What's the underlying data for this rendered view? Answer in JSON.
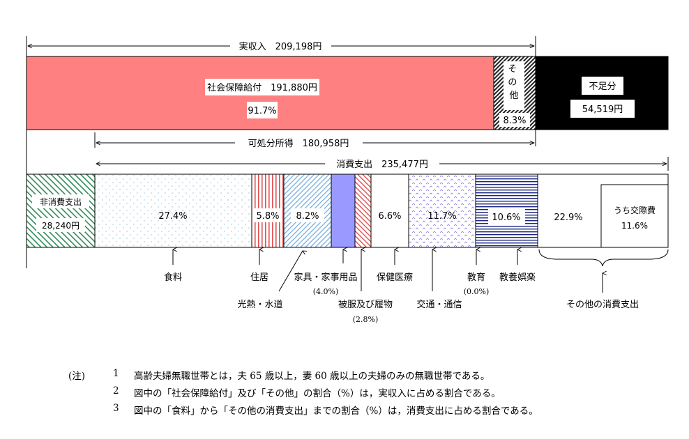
{
  "chart_data": {
    "type": "bar",
    "top_bar": {
      "header": "実収入　209,198円",
      "segments": [
        {
          "name": "社会保障給付　191,880円",
          "value": 191880,
          "pct": "91.7%",
          "color": "#ff8080"
        },
        {
          "name": "その他",
          "value": 17318,
          "pct": "8.3%",
          "pattern": "dark-diagonal"
        },
        {
          "name": "不足分",
          "value": 54519,
          "value_label": "54,519円",
          "color": "#000000"
        }
      ]
    },
    "disposable_income": "可処分所得　180,958円",
    "consumption": "消費支出　235,477円",
    "bottom_bar": {
      "segments": [
        {
          "key": "non_consumption",
          "label": "非消費支出",
          "value_label": "28,240円",
          "value": 28240
        },
        {
          "key": "food",
          "label": "食料",
          "pct": "27.4%",
          "value": 27.4
        },
        {
          "key": "housing",
          "label": "住居",
          "pct": "5.8%",
          "value": 5.8
        },
        {
          "key": "utilities",
          "label": "光熱・水道",
          "pct": "8.2%",
          "value": 8.2
        },
        {
          "key": "furniture",
          "label": "家具・家事用品",
          "pct": "(4.0%)",
          "value": 4.0
        },
        {
          "key": "clothing",
          "label": "被服及び履物",
          "pct": "(2.8%)",
          "value": 2.8
        },
        {
          "key": "medical",
          "label": "保健医療",
          "pct": "6.6%",
          "value": 6.6
        },
        {
          "key": "transport",
          "label": "交通・通信",
          "pct": "11.7%",
          "value": 11.7
        },
        {
          "key": "education",
          "label": "教育",
          "pct": "(0.0%)",
          "value": 0.0
        },
        {
          "key": "recreation",
          "label": "教養娯楽",
          "pct": "10.6%",
          "value": 10.6
        },
        {
          "key": "other",
          "label": "その他の消費支出",
          "pct": "22.9%",
          "value": 22.9,
          "sub_label": "うち交際費",
          "sub_pct": "11.6%"
        }
      ]
    }
  },
  "notes": {
    "prefix": "(注)",
    "items": [
      {
        "num": "1",
        "text": "高齢夫婦無職世帯とは，夫 65 歳以上，妻 60 歳以上の夫婦のみの無職世帯である。"
      },
      {
        "num": "2",
        "text": "図中の「社会保障給付」及び「その他」の割合（%）は，実収入に占める割合である。"
      },
      {
        "num": "3",
        "text": "図中の「食料」から「その他の消費支出」までの割合（%）は，消費支出に占める割合である。"
      }
    ]
  }
}
